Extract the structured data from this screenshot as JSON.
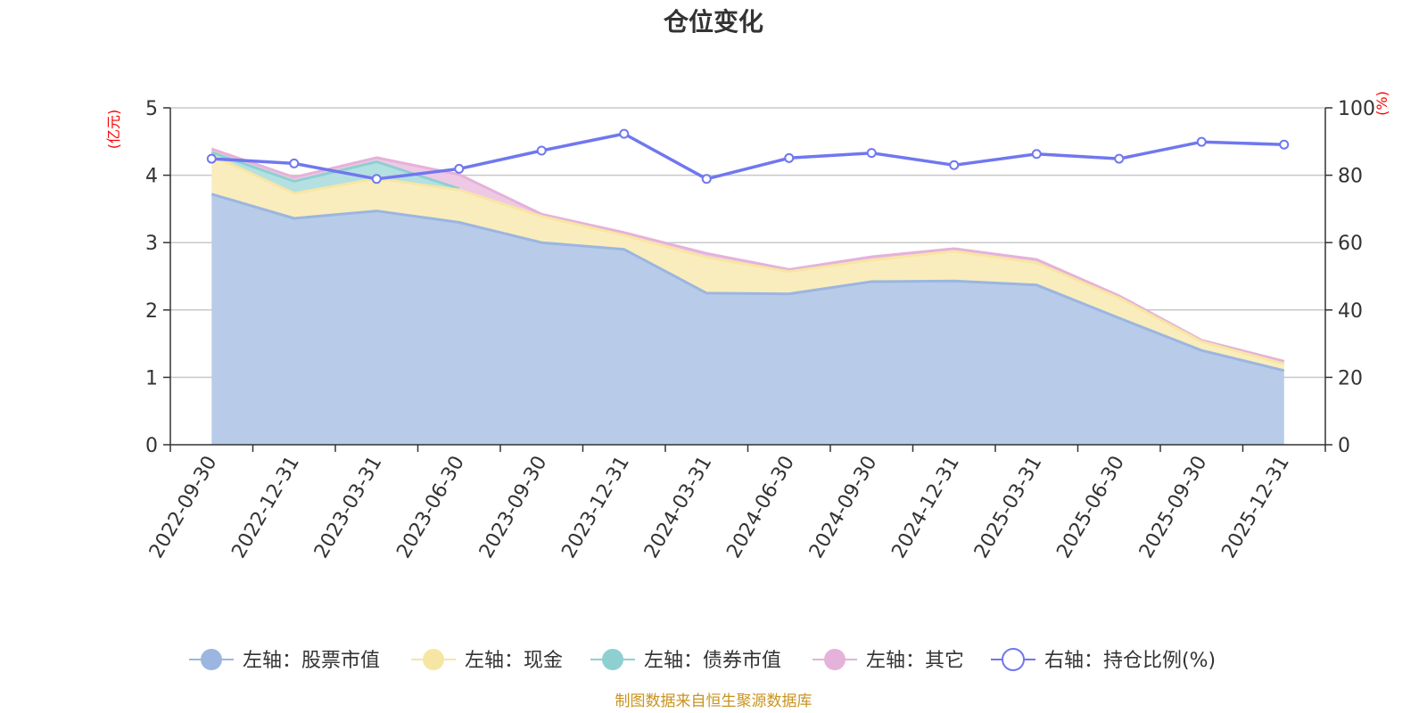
{
  "chart_data": {
    "type": "area",
    "title": "仓位变化",
    "left_axis": {
      "unit": "(亿元)",
      "ylim": [
        0,
        5
      ],
      "ticks": [
        "0",
        "1",
        "2",
        "3",
        "4",
        "5"
      ]
    },
    "right_axis": {
      "unit": "(%)",
      "ylim": [
        0,
        100
      ],
      "ticks": [
        "0",
        "20",
        "40",
        "60",
        "80",
        "100"
      ]
    },
    "categories": [
      "2022-09-30",
      "2022-12-31",
      "2023-03-31",
      "2023-06-30",
      "2023-09-30",
      "2023-12-31",
      "2024-03-31",
      "2024-06-30",
      "2024-09-30",
      "2024-12-31",
      "2025-03-31",
      "2025-06-30",
      "2025-09-30",
      "2025-12-31"
    ],
    "series": [
      {
        "name": "左轴：股票市值",
        "axis": "left",
        "stack": true,
        "values": [
          3.72,
          3.36,
          3.47,
          3.3,
          3.0,
          2.9,
          2.25,
          2.24,
          2.42,
          2.43,
          2.37,
          1.88,
          1.4,
          1.1
        ]
      },
      {
        "name": "左轴：现金",
        "axis": "left",
        "stack": true,
        "values": [
          0.58,
          0.37,
          0.48,
          0.48,
          0.39,
          0.21,
          0.53,
          0.33,
          0.32,
          0.44,
          0.33,
          0.3,
          0.13,
          0.1
        ]
      },
      {
        "name": "左轴：债券市值",
        "axis": "left",
        "stack": true,
        "values": [
          0.04,
          0.18,
          0.25,
          0.02,
          null,
          null,
          null,
          null,
          null,
          null,
          null,
          null,
          null,
          null
        ]
      },
      {
        "name": "左轴：其它",
        "axis": "left",
        "stack": true,
        "values": [
          0.05,
          0.06,
          0.06,
          0.21,
          0.03,
          0.04,
          0.06,
          0.03,
          0.05,
          0.04,
          0.05,
          0.03,
          0.02,
          0.04
        ]
      },
      {
        "name": "右轴：持仓比例(%)",
        "axis": "right",
        "stack": false,
        "values": [
          84.9,
          83.5,
          78.9,
          81.9,
          87.3,
          92.3,
          78.9,
          85.1,
          86.6,
          83.0,
          86.3,
          84.9,
          89.9,
          89.1
        ]
      }
    ],
    "colors": {
      "stock": "#9bb6e0",
      "stock_fill": "#b8cbe9",
      "cash": "#f7e6a3",
      "cash_fill": "#faedbd",
      "bond": "#8ed0d2",
      "bond_fill": "#b4e0e1",
      "other": "#e5b2d9",
      "other_fill": "#eec9e5",
      "ratio": "#7077ef"
    },
    "legend_position": "bottom"
  },
  "footer": {
    "source": "制图数据来自恒生聚源数据库"
  }
}
